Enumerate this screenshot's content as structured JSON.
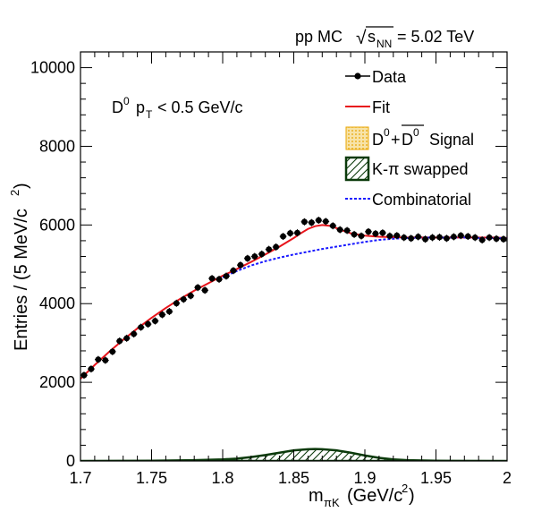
{
  "header": {
    "prefix": "pp MC",
    "sqrt_symbol": "√",
    "s_letter": "s",
    "nn_subscript": "NN",
    "energy": "= 5.02 TeV"
  },
  "annotation": {
    "d0": "D",
    "zero": "0",
    "p": "p",
    "T": "T",
    "cut": "< 0.5 GeV/c"
  },
  "legend": {
    "data": "Data",
    "fit": "Fit",
    "signal_d": "D",
    "signal_zero": "0",
    "signal_plus": "+",
    "signal_dbar": "D",
    "signal_zero2": "0",
    "signal_word": "Signal",
    "swapped": "K-π swapped",
    "combinatorial": "Combinatorial"
  },
  "axes": {
    "ylabel": "Entries / (5 MeV/c",
    "ylabel_sup": "2",
    "ylabel_close": ")",
    "xlabel_m": "m",
    "xlabel_sub": "πK",
    "xlabel_unit": "(GeV/c",
    "xlabel_sup": "2",
    "xlabel_close": ")"
  },
  "colors": {
    "data": "#000000",
    "fit": "#e8141b",
    "signal_fill": "#f2d28a",
    "signal_line": "#e8a400",
    "swapped_line": "#0b3a0b",
    "combinatorial": "#1a1aff"
  },
  "chart_data": {
    "type": "scatter",
    "xlim": [
      1.7,
      2.0
    ],
    "ylim": [
      0,
      10400
    ],
    "x_ticks": [
      1.7,
      1.75,
      1.8,
      1.85,
      1.9,
      1.95,
      2.0
    ],
    "x_tick_labels": [
      "1.7",
      "1.75",
      "1.8",
      "1.85",
      "1.9",
      "1.95",
      "2"
    ],
    "y_ticks": [
      0,
      2000,
      4000,
      6000,
      8000,
      10000
    ],
    "y_tick_labels": [
      "0",
      "2000",
      "4000",
      "6000",
      "8000",
      "10000"
    ],
    "series": [
      {
        "name": "Data",
        "kind": "points",
        "x": [
          1.7025,
          1.7075,
          1.7125,
          1.7175,
          1.7225,
          1.7275,
          1.7325,
          1.7375,
          1.7425,
          1.7475,
          1.7525,
          1.7575,
          1.7625,
          1.7675,
          1.7725,
          1.7775,
          1.7825,
          1.7875,
          1.7925,
          1.7975,
          1.8025,
          1.8075,
          1.8125,
          1.8175,
          1.8225,
          1.8275,
          1.8325,
          1.8375,
          1.8425,
          1.8475,
          1.8525,
          1.8575,
          1.8625,
          1.8675,
          1.8725,
          1.8775,
          1.8825,
          1.8875,
          1.8925,
          1.8975,
          1.9025,
          1.9075,
          1.9125,
          1.9175,
          1.9225,
          1.9275,
          1.9325,
          1.9375,
          1.9425,
          1.9475,
          1.9525,
          1.9575,
          1.9625,
          1.9675,
          1.9725,
          1.9775,
          1.9825,
          1.9875,
          1.9925,
          1.9975
        ],
        "y": [
          2180,
          2340,
          2580,
          2560,
          2780,
          3050,
          3120,
          3230,
          3400,
          3480,
          3560,
          3720,
          3800,
          4010,
          4110,
          4200,
          4410,
          4340,
          4640,
          4620,
          4700,
          4840,
          4980,
          5150,
          5200,
          5260,
          5380,
          5440,
          5710,
          5790,
          5800,
          6080,
          6060,
          6120,
          6090,
          5980,
          5880,
          5860,
          5760,
          5720,
          5830,
          5780,
          5800,
          5720,
          5730,
          5680,
          5660,
          5700,
          5640,
          5680,
          5690,
          5660,
          5700,
          5730,
          5710,
          5680,
          5620,
          5680,
          5650,
          5640
        ]
      },
      {
        "name": "Fit",
        "kind": "line",
        "x": [
          1.7,
          1.71,
          1.72,
          1.73,
          1.74,
          1.75,
          1.76,
          1.77,
          1.78,
          1.79,
          1.8,
          1.81,
          1.82,
          1.83,
          1.84,
          1.85,
          1.855,
          1.86,
          1.865,
          1.87,
          1.875,
          1.88,
          1.885,
          1.89,
          1.9,
          1.91,
          1.92,
          1.93,
          1.94,
          1.95,
          1.96,
          1.97,
          1.98,
          1.99,
          2.0
        ],
        "y": [
          2090,
          2440,
          2770,
          3080,
          3370,
          3640,
          3890,
          4120,
          4330,
          4520,
          4710,
          4880,
          5060,
          5250,
          5450,
          5670,
          5790,
          5900,
          5970,
          6000,
          5980,
          5920,
          5850,
          5790,
          5730,
          5700,
          5690,
          5680,
          5680,
          5680,
          5680,
          5680,
          5680,
          5680,
          5670
        ]
      },
      {
        "name": "Combinatorial",
        "kind": "dashed-line",
        "x": [
          1.8,
          1.81,
          1.82,
          1.83,
          1.84,
          1.85,
          1.86,
          1.87,
          1.88,
          1.89,
          1.9,
          1.91,
          1.92,
          1.93,
          1.94,
          1.95,
          1.96,
          1.97,
          1.98,
          1.99,
          2.0
        ],
        "y": [
          4670,
          4830,
          4970,
          5080,
          5170,
          5250,
          5320,
          5390,
          5450,
          5510,
          5570,
          5620,
          5650,
          5670,
          5680,
          5680,
          5680,
          5680,
          5670,
          5670,
          5660
        ]
      },
      {
        "name": "D0+D0bar Signal",
        "kind": "filled-area",
        "x": [
          1.8,
          1.81,
          1.82,
          1.83,
          1.84,
          1.85,
          1.855,
          1.86,
          1.865,
          1.87,
          1.875,
          1.88,
          1.89,
          1.9,
          1.91,
          1.92,
          1.93
        ],
        "y": [
          0,
          3,
          10,
          25,
          45,
          70,
          80,
          85,
          82,
          75,
          62,
          48,
          25,
          10,
          4,
          1,
          0
        ]
      },
      {
        "name": "K-pi swapped",
        "kind": "hatched-area",
        "x": [
          1.7,
          1.75,
          1.78,
          1.8,
          1.81,
          1.82,
          1.83,
          1.84,
          1.85,
          1.86,
          1.865,
          1.87,
          1.88,
          1.89,
          1.9,
          1.91,
          1.92,
          1.93,
          1.95,
          2.0
        ],
        "y": [
          0,
          5,
          20,
          40,
          60,
          100,
          150,
          210,
          270,
          300,
          305,
          300,
          270,
          210,
          140,
          80,
          40,
          20,
          5,
          0
        ]
      }
    ]
  }
}
